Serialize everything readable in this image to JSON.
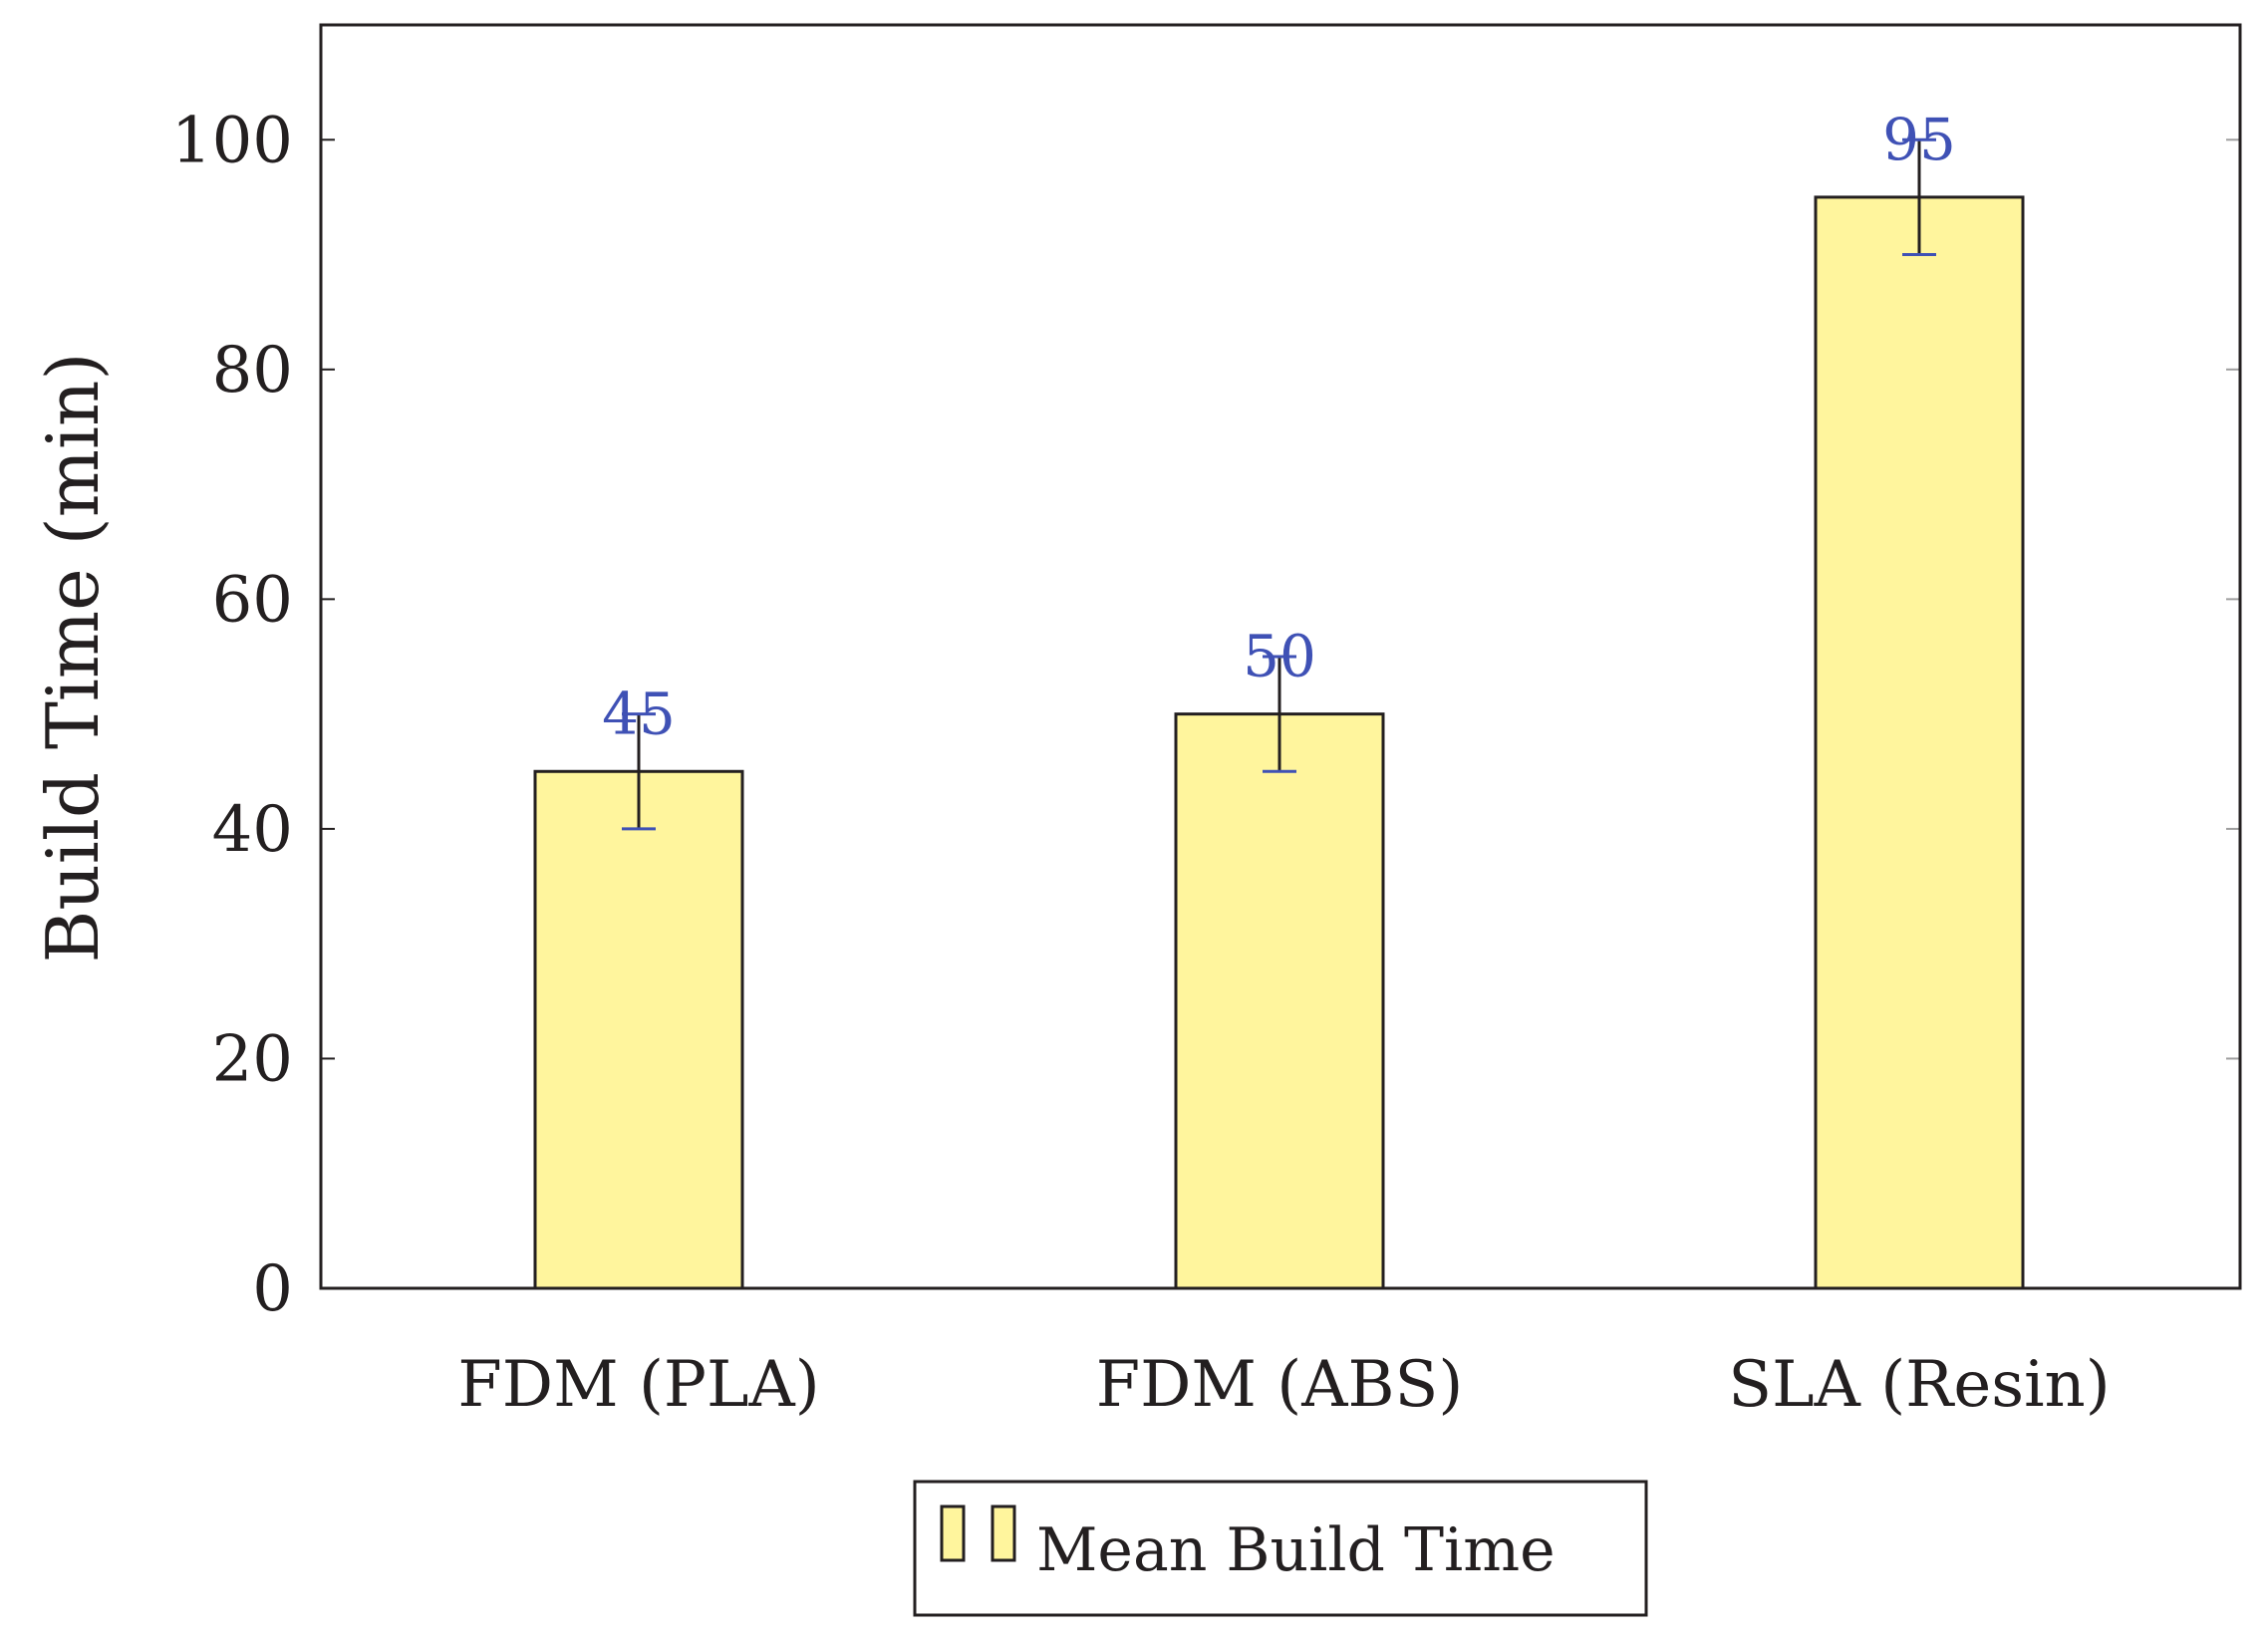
{
  "chart_data": {
    "type": "bar",
    "title": "",
    "xlabel": "",
    "ylabel": "Build Time (min)",
    "categories": [
      "FDM (PLA)",
      "FDM (ABS)",
      "SLA (Resin)"
    ],
    "series": [
      {
        "name": "Mean Build Time",
        "values": [
          45,
          50,
          95
        ],
        "errors": [
          5,
          5,
          5
        ],
        "data_labels": [
          "45",
          "50",
          "95"
        ]
      }
    ],
    "ylim": [
      0,
      110
    ],
    "yticks": [
      0,
      20,
      40,
      60,
      80,
      100
    ],
    "ytick_labels": [
      "0",
      "20",
      "40",
      "60",
      "80",
      "100"
    ],
    "grid": false,
    "legend_position": "bottom-center",
    "colors": {
      "bar_fill": "#fff59d",
      "bar_stroke": "#231f20",
      "error_bar": "#231f20",
      "error_cap": "#3f51b5",
      "data_label": "#3f51b5",
      "axis": "#231f20",
      "tick_right": "#9e9e9e"
    }
  }
}
